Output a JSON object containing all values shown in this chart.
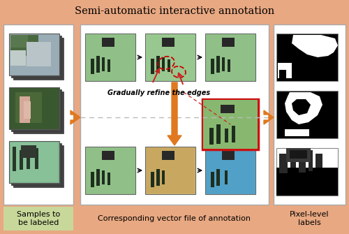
{
  "title": "Semi-automatic interactive annotation",
  "bg_color": "#E8A882",
  "white": "#FFFFFF",
  "left_label": "Samples to\nbe labeled",
  "center_label": "Corresponding vector file of annotation",
  "right_label": "Pixel-level\nlabels",
  "label_bg_green": "#C8D89A",
  "label_bg_orange": "#E8A882",
  "annotation_text": "Gradually refine the edges",
  "arrow_orange": "#E07820",
  "title_fontsize": 10.5,
  "label_fontsize": 8,
  "annot_fontsize": 7
}
